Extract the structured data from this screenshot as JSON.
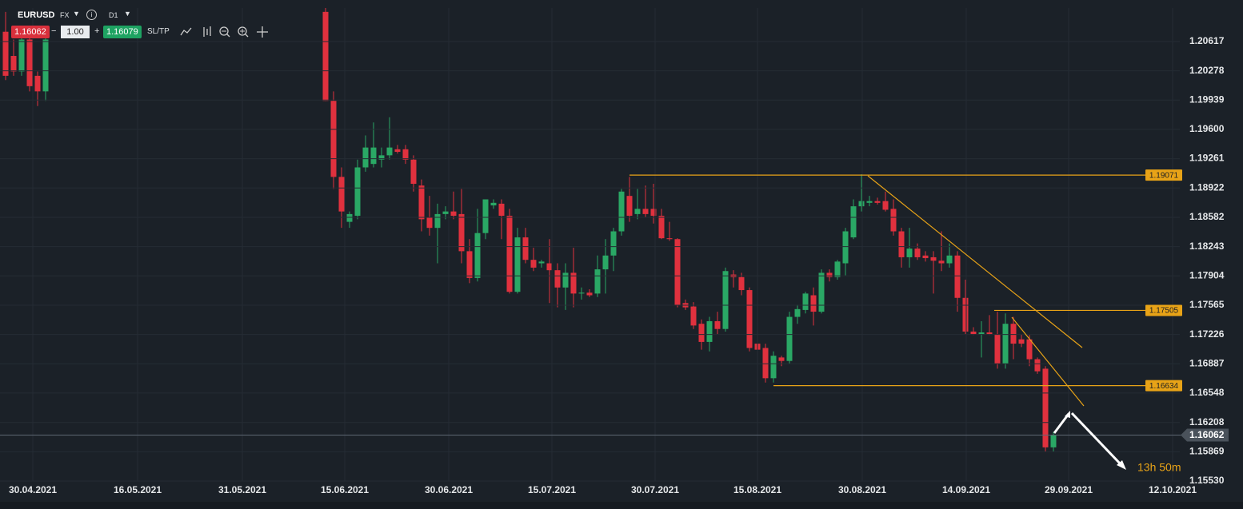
{
  "toolbar": {
    "symbol": "EURUSD",
    "market": "FX",
    "timeframe": "D1",
    "sell_price": "1.16062",
    "lot_size": "1.00",
    "buy_price": "1.16079",
    "sltp": "SL/TP",
    "minus": "−",
    "plus": "+"
  },
  "chart_data": {
    "type": "candlestick",
    "up_color": "#2aa865",
    "down_color": "#e0313e",
    "grid": true,
    "ylim": [
      1.1553,
      1.21005
    ],
    "yticks": [
      1.20617,
      1.20278,
      1.19939,
      {
        "value": 1.196,
        "label": "1.19600"
      },
      1.19261,
      1.18922,
      1.18582,
      1.18243,
      1.17904,
      1.17565,
      1.17226,
      1.16887,
      1.16548,
      1.16208,
      1.15869,
      {
        "value": 1.1553,
        "label": "1.15530"
      }
    ],
    "xlim": [
      -0.7,
      146.8
    ],
    "xticks": [
      {
        "value": 3.4,
        "label": "30.04.2021"
      },
      {
        "value": 16.5,
        "label": "16.05.2021"
      },
      {
        "value": 29.6,
        "label": "31.05.2021"
      },
      {
        "value": 42.4,
        "label": "15.06.2021"
      },
      {
        "value": 55.4,
        "label": "30.06.2021"
      },
      {
        "value": 68.3,
        "label": "15.07.2021"
      },
      {
        "value": 81.2,
        "label": "30.07.2021"
      },
      {
        "value": 94,
        "label": "15.08.2021"
      },
      {
        "value": 107.1,
        "label": "30.08.2021"
      },
      {
        "value": 120.1,
        "label": "14.09.2021"
      },
      {
        "value": 132.9,
        "label": "29.09.2021"
      },
      {
        "value": 145.9,
        "label": "12.10.2021"
      }
    ],
    "x": [
      0,
      1,
      2,
      3,
      4,
      5,
      40,
      41,
      42,
      43,
      44,
      45,
      46,
      47,
      48,
      49,
      50,
      51,
      52,
      53,
      54,
      55,
      56,
      57,
      58,
      59,
      60,
      61,
      62,
      63,
      64,
      65,
      66,
      67,
      68,
      69,
      70,
      71,
      72,
      73,
      74,
      75,
      76,
      77,
      78,
      79,
      80,
      81,
      82,
      83,
      84,
      85,
      86,
      87,
      88,
      89,
      90,
      91,
      92,
      93,
      94,
      95,
      96,
      97,
      98,
      99,
      100,
      101,
      102,
      103,
      104,
      105,
      106,
      107,
      108,
      109,
      110,
      111,
      112,
      113,
      114,
      115,
      116,
      117,
      118,
      119,
      120,
      121,
      122,
      123,
      124,
      125,
      126,
      127,
      128,
      129,
      130,
      131
    ],
    "open": [
      1.2073,
      1.2045,
      1.2027,
      1.2064,
      1.2022,
      1.2004,
      1.2096,
      1.1993,
      1.1905,
      1.1853,
      1.186,
      1.1916,
      1.192,
      1.1925,
      1.193,
      1.1937,
      1.1937,
      1.1925,
      1.1895,
      1.1858,
      1.1846,
      1.1862,
      1.1865,
      1.1862,
      1.1819,
      1.1788,
      1.184,
      1.1872,
      1.1874,
      1.186,
      1.1772,
      1.1835,
      1.1809,
      1.1805,
      1.1805,
      1.1797,
      1.1777,
      1.1794,
      1.177,
      1.1771,
      1.177,
      1.1798,
      1.1814,
      1.1842,
      1.1883,
      1.1862,
      1.1868,
      1.1868,
      1.186,
      1.1834,
      1.1833,
      1.1759,
      1.1755,
      1.1735,
      1.1714,
      1.1738,
      1.1729,
      1.1792,
      1.1789,
      1.1774,
      1.1712,
      1.1707,
      1.1672,
      1.1696,
      1.1692,
      1.1743,
      1.1751,
      1.1768,
      1.1749,
      1.1794,
      1.1789,
      1.1805,
      1.1835,
      1.1871,
      1.1875,
      1.1877,
      1.1877,
      1.1868,
      1.1842,
      1.1812,
      1.1822,
      1.1814,
      1.1812,
      1.1808,
      1.1805,
      1.1814,
      1.1765,
      1.1726,
      1.1723,
      1.1725,
      1.1723,
      1.1689,
      1.1735,
      1.1717,
      1.1717,
      1.1694,
      1.1683,
      1.1592
    ],
    "high": [
      1.2096,
      1.2064,
      1.2073,
      1.2073,
      1.2027,
      1.2073,
      1.2101,
      1.2004,
      1.1916,
      1.1865,
      1.1925,
      1.1953,
      1.1968,
      1.1939,
      1.1974,
      1.1942,
      1.1942,
      1.193,
      1.1902,
      1.1883,
      1.1874,
      1.1871,
      1.1888,
      1.1891,
      1.1833,
      1.1868,
      1.1879,
      1.1879,
      1.1879,
      1.1868,
      1.1846,
      1.1846,
      1.1823,
      1.1809,
      1.1833,
      1.1805,
      1.1805,
      1.1823,
      1.1777,
      1.1775,
      1.1814,
      1.1833,
      1.1846,
      1.1891,
      1.1905,
      1.1891,
      1.1895,
      1.1897,
      1.1868,
      1.1853,
      1.1834,
      1.1763,
      1.176,
      1.174,
      1.1743,
      1.1749,
      1.18,
      1.1797,
      1.1794,
      1.1777,
      1.1738,
      1.1712,
      1.1703,
      1.1698,
      1.1749,
      1.1757,
      1.1772,
      1.1777,
      1.1798,
      1.1798,
      1.1809,
      1.1846,
      1.1879,
      1.1908,
      1.1883,
      1.1881,
      1.1888,
      1.1879,
      1.1846,
      1.1846,
      1.1828,
      1.1819,
      1.1819,
      1.1842,
      1.1828,
      1.1819,
      1.1786,
      1.1731,
      1.1738,
      1.1745,
      1.1749,
      1.1747,
      1.1743,
      1.1723,
      1.1722,
      1.1696,
      1.1686,
      1.161
    ],
    "low": [
      1.2017,
      1.2022,
      1.2022,
      1.2004,
      1.1987,
      1.1993,
      1.1993,
      1.1891,
      1.1846,
      1.1846,
      1.1856,
      1.1911,
      1.1916,
      1.1916,
      1.1925,
      1.1932,
      1.192,
      1.1888,
      1.1842,
      1.1837,
      1.1805,
      1.1856,
      1.1856,
      1.1805,
      1.1782,
      1.1784,
      1.1833,
      1.1868,
      1.1833,
      1.177,
      1.177,
      1.1805,
      1.1796,
      1.18,
      1.1759,
      1.1754,
      1.1751,
      1.1754,
      1.1763,
      1.1766,
      1.1766,
      1.177,
      1.1796,
      1.1837,
      1.1853,
      1.1856,
      1.1858,
      1.1851,
      1.1833,
      1.1831,
      1.1754,
      1.1751,
      1.1729,
      1.1705,
      1.1703,
      1.1723,
      1.1726,
      1.1777,
      1.1768,
      1.1703,
      1.1701,
      1.1667,
      1.1667,
      1.1686,
      1.1689,
      1.1735,
      1.1747,
      1.1733,
      1.1747,
      1.1784,
      1.1786,
      1.1791,
      1.1833,
      1.1865,
      1.1871,
      1.1873,
      1.1865,
      1.1837,
      1.18,
      1.18,
      1.1809,
      1.1807,
      1.177,
      1.1796,
      1.18,
      1.1749,
      1.1723,
      1.1722,
      1.1696,
      1.1722,
      1.1683,
      1.1683,
      1.1694,
      1.1708,
      1.1686,
      1.1677,
      1.1587,
      1.1587
    ],
    "close": [
      1.2022,
      1.2027,
      1.2064,
      1.201,
      1.2004,
      1.2064,
      1.1993,
      1.1905,
      1.1865,
      1.1862,
      1.1916,
      1.1939,
      1.1939,
      1.193,
      1.1939,
      1.1934,
      1.1925,
      1.1897,
      1.1856,
      1.1846,
      1.1862,
      1.1865,
      1.186,
      1.1819,
      1.1788,
      1.184,
      1.1879,
      1.1875,
      1.186,
      1.1772,
      1.1835,
      1.1809,
      1.18,
      1.1807,
      1.1797,
      1.1777,
      1.1794,
      1.177,
      1.1771,
      1.1768,
      1.1798,
      1.1814,
      1.1842,
      1.1888,
      1.186,
      1.1868,
      1.1862,
      1.186,
      1.1834,
      1.1833,
      1.1757,
      1.1754,
      1.1733,
      1.1714,
      1.1738,
      1.1729,
      1.1796,
      1.1789,
      1.1774,
      1.1707,
      1.1705,
      1.1672,
      1.1698,
      1.1692,
      1.1743,
      1.1752,
      1.177,
      1.1749,
      1.1794,
      1.1789,
      1.1807,
      1.1842,
      1.1871,
      1.1877,
      1.1877,
      1.1875,
      1.1867,
      1.1842,
      1.1812,
      1.1822,
      1.1812,
      1.1811,
      1.1808,
      1.1805,
      1.1814,
      1.1765,
      1.1726,
      1.1723,
      1.1725,
      1.1723,
      1.1689,
      1.1735,
      1.1712,
      1.1712,
      1.1694,
      1.168,
      1.1592,
      1.1606
    ],
    "levels": [
      1.19071,
      1.17505,
      1.16634
    ],
    "level_color": "#e8a317",
    "last_price": 1.16062,
    "countdown": "13h 50m"
  }
}
